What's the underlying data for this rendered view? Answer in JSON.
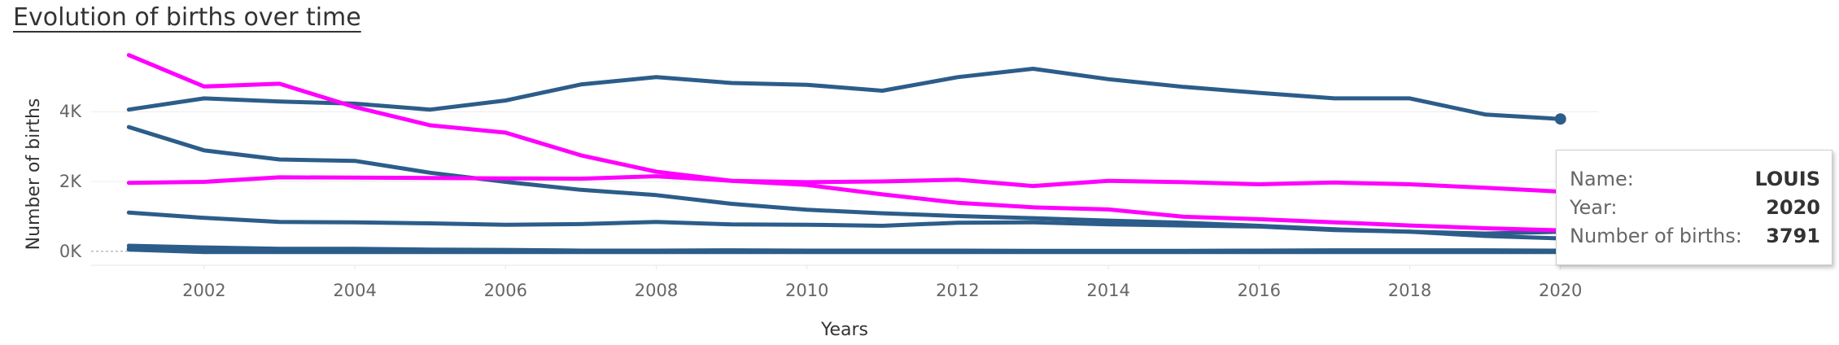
{
  "chart_data": {
    "type": "line",
    "title": "Evolution of births over time",
    "xlabel": "Years",
    "ylabel": "Number of births",
    "xlim": [
      2000.5,
      2020.5
    ],
    "ylim": [
      -400,
      5800
    ],
    "x_ticks": [
      2002,
      2004,
      2006,
      2008,
      2010,
      2012,
      2014,
      2016,
      2018,
      2020
    ],
    "y_ticks": [
      0,
      2000,
      4000
    ],
    "y_tick_labels": [
      "0K",
      "2K",
      "4K"
    ],
    "grid": {
      "horizontal": true,
      "vertical": false
    },
    "x": [
      2001,
      2002,
      2003,
      2004,
      2005,
      2006,
      2007,
      2008,
      2009,
      2010,
      2011,
      2012,
      2013,
      2014,
      2015,
      2016,
      2017,
      2018,
      2019,
      2020
    ],
    "series": [
      {
        "color": "#2c5d8a",
        "values": [
          4060,
          4380,
          4290,
          4230,
          4060,
          4320,
          4780,
          4990,
          4820,
          4770,
          4600,
          4990,
          5230,
          4930,
          4710,
          4540,
          4380,
          4380,
          3920,
          3791
        ]
      },
      {
        "color": "#2c5d8a",
        "values": [
          3560,
          2890,
          2630,
          2590,
          2250,
          1990,
          1760,
          1610,
          1360,
          1190,
          1090,
          1010,
          950,
          880,
          820,
          730,
          630,
          560,
          510,
          560
        ]
      },
      {
        "color": "#2c5d8a",
        "values": [
          1110,
          960,
          840,
          830,
          800,
          760,
          780,
          840,
          770,
          760,
          730,
          820,
          830,
          770,
          740,
          710,
          610,
          560,
          440,
          370
        ]
      },
      {
        "color": "#2c5d8a",
        "values": [
          160,
          110,
          70,
          70,
          50,
          40,
          20,
          20,
          30,
          20,
          20,
          10,
          10,
          10,
          10,
          20,
          20,
          20,
          10,
          10
        ]
      },
      {
        "color": "#2c5d8a",
        "values": [
          80,
          50,
          40,
          30,
          30,
          30,
          20,
          20,
          20,
          20,
          20,
          20,
          10,
          10,
          10,
          20,
          30,
          30,
          30,
          20
        ]
      },
      {
        "color": "#2c5d8a",
        "values": [
          50,
          -20,
          -20,
          -20,
          -20,
          -20,
          -20,
          -20,
          -20,
          -20,
          -20,
          -20,
          -20,
          -20,
          -20,
          -20,
          -20,
          -20,
          -20,
          -20
        ]
      },
      {
        "color": "#ff00ff",
        "values": [
          5620,
          4720,
          4800,
          4130,
          3610,
          3400,
          2750,
          2280,
          2020,
          1900,
          1630,
          1390,
          1260,
          1200,
          990,
          920,
          830,
          740,
          660,
          600
        ]
      },
      {
        "color": "#ff00ff",
        "values": [
          1960,
          1990,
          2120,
          2110,
          2100,
          2090,
          2080,
          2150,
          2020,
          1980,
          2000,
          2050,
          1870,
          2020,
          1980,
          1920,
          1970,
          1920,
          1820,
          1710
        ]
      }
    ],
    "highlight": {
      "x": 2020,
      "y": 3791,
      "series_index": 0
    }
  },
  "tooltip": {
    "rows": [
      {
        "key": "Name:",
        "value": "LOUIS"
      },
      {
        "key": "Year:",
        "value": "2020"
      },
      {
        "key": "Number of births:",
        "value": "3791"
      }
    ]
  }
}
